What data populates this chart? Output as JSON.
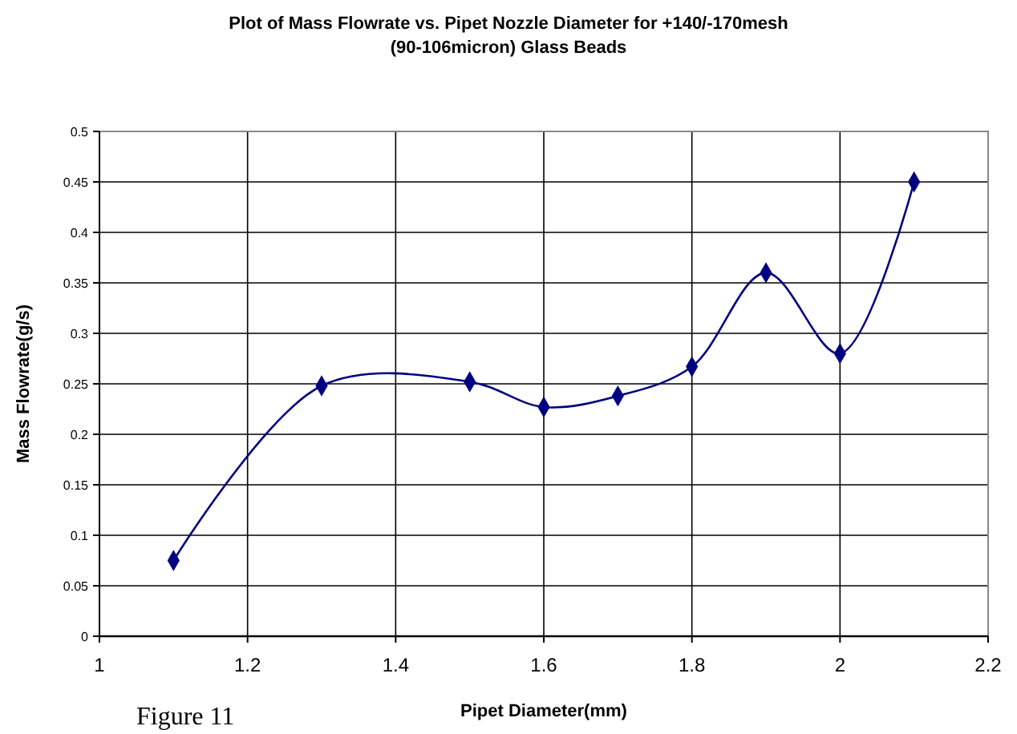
{
  "chart_data": {
    "type": "line",
    "title": "Plot of Mass Flowrate vs. Pipet Nozzle Diameter for +140/-170mesh\n(90-106micron) Glass Beads",
    "xlabel": "Pipet Diameter(mm)",
    "ylabel": "Mass Flowrate(g/s)",
    "annotations": [
      "Figure 11"
    ],
    "x": [
      1.1,
      1.3,
      1.5,
      1.6,
      1.7,
      1.8,
      1.9,
      2.0,
      2.1
    ],
    "series": [
      {
        "color": "#000080",
        "values": [
          0.075,
          0.248,
          0.252,
          0.227,
          0.238,
          0.267,
          0.36,
          0.28,
          0.45
        ]
      }
    ],
    "xlim": [
      1,
      2.2
    ],
    "xticks": [
      1,
      1.2,
      1.4,
      1.6,
      1.8,
      2,
      2.2
    ],
    "ylim": [
      0,
      0.5
    ],
    "yticks": [
      0,
      0.05,
      0.1,
      0.15,
      0.2,
      0.25,
      0.3,
      0.35,
      0.4,
      0.45,
      0.5
    ],
    "grid": true,
    "marker": "diamond",
    "line_style": "solid"
  }
}
